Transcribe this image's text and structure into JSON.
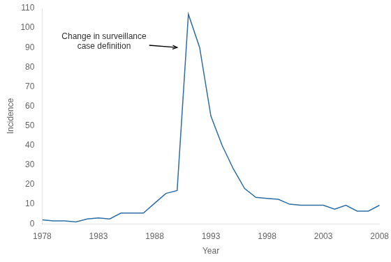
{
  "chart_data": {
    "type": "line",
    "x": [
      1978,
      1979,
      1980,
      1981,
      1982,
      1983,
      1984,
      1985,
      1986,
      1987,
      1988,
      1989,
      1990,
      1991,
      1992,
      1993,
      1994,
      1995,
      1996,
      1997,
      1998,
      1999,
      2000,
      2001,
      2002,
      2003,
      2004,
      2005,
      2006,
      2007,
      2008
    ],
    "values": [
      2.0,
      1.5,
      1.5,
      1.0,
      2.5,
      3.0,
      2.5,
      5.5,
      5.5,
      5.5,
      10.5,
      15.5,
      17.0,
      107.0,
      90.0,
      55.0,
      40.0,
      28.0,
      18.0,
      13.5,
      13.0,
      12.5,
      10.0,
      9.5,
      9.5,
      9.5,
      7.5,
      9.5,
      6.5,
      6.5,
      9.5
    ],
    "color": "#2E6EA6",
    "xlabel": "Year",
    "ylabel": "Incidence",
    "xlim": [
      1978,
      2008
    ],
    "ylim": [
      0,
      110
    ],
    "xticks": [
      1978,
      1983,
      1988,
      1993,
      1998,
      2003,
      2008
    ],
    "yticks": [
      0,
      10,
      20,
      30,
      40,
      50,
      60,
      70,
      80,
      90,
      100,
      110
    ],
    "grid": false,
    "annotations": [
      {
        "text": "Change in surveillance\ncase definition",
        "x": 1983.5,
        "y": 93.0,
        "arrow_x": 1990.0,
        "arrow_y": 90.0
      }
    ]
  }
}
